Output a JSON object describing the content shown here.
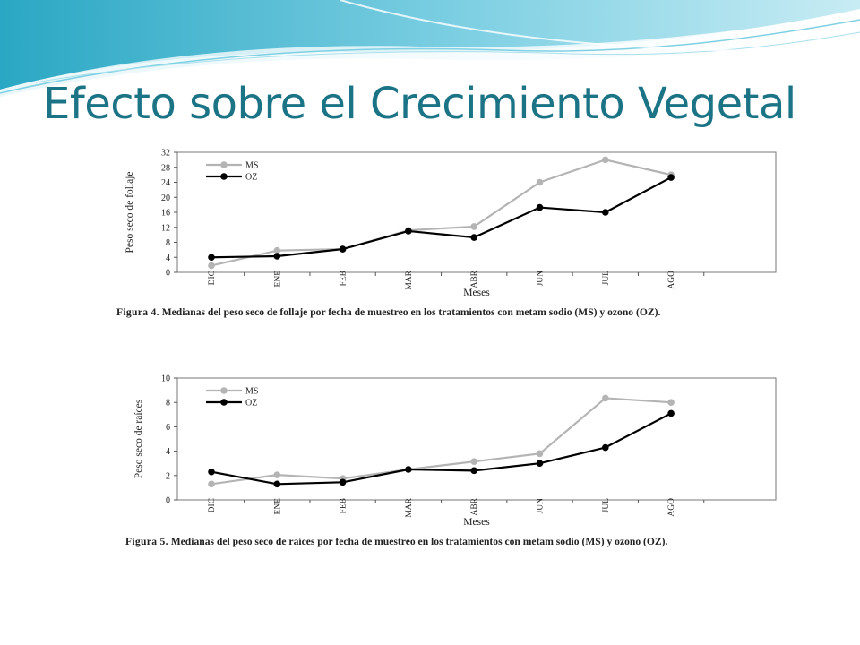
{
  "slide": {
    "title": "Efecto sobre el Crecimiento Vegetal",
    "colors": {
      "title": "#1b7386",
      "banner_dark": "#2aa7c4",
      "banner_light": "#c8ecf4"
    }
  },
  "chart_data": [
    {
      "type": "line",
      "categories": [
        "DIC",
        "ENE",
        "FEB",
        "MAR",
        "ABR",
        "JUN",
        "JUL",
        "AGO"
      ],
      "series": [
        {
          "name": "MS",
          "color": "#b4b4b4",
          "values": [
            1.8,
            5.8,
            6.2,
            11.2,
            12.2,
            24,
            30,
            26
          ]
        },
        {
          "name": "OZ",
          "color": "#000000",
          "values": [
            4,
            4.3,
            6.2,
            11,
            9.3,
            17.3,
            16,
            25.3
          ]
        }
      ],
      "xlabel": "Meses",
      "ylabel": "Peso seco de follaje",
      "ylim": [
        0,
        32
      ],
      "yticks": [
        0,
        4,
        8,
        12,
        16,
        20,
        24,
        28,
        32
      ],
      "grid": false,
      "legend": "top-left",
      "caption": {
        "label": "Figura 4.",
        "text": "Medianas del peso seco de follaje por fecha de muestreo en los tratamientos con metam sodio (MS) y ozono (OZ)."
      }
    },
    {
      "type": "line",
      "categories": [
        "DIC",
        "ENE",
        "FEB",
        "MAR",
        "ABR",
        "JUN",
        "JUL",
        "AGO"
      ],
      "series": [
        {
          "name": "MS",
          "color": "#b4b4b4",
          "values": [
            1.3,
            2.05,
            1.75,
            2.5,
            3.15,
            3.8,
            8.35,
            8
          ]
        },
        {
          "name": "OZ",
          "color": "#000000",
          "values": [
            2.3,
            1.3,
            1.45,
            2.5,
            2.4,
            3,
            4.3,
            7.1
          ]
        }
      ],
      "xlabel": "Meses",
      "ylabel": "Peso seco de raíces",
      "ylim": [
        0,
        10
      ],
      "yticks": [
        0,
        2,
        4,
        6,
        8,
        10
      ],
      "grid": false,
      "legend": "top-left",
      "caption": {
        "label": "Figura 5.",
        "text": "Medianas del peso seco de raíces por fecha de muestreo en los tratamientos con metam sodio (MS) y ozono (OZ)."
      }
    }
  ]
}
